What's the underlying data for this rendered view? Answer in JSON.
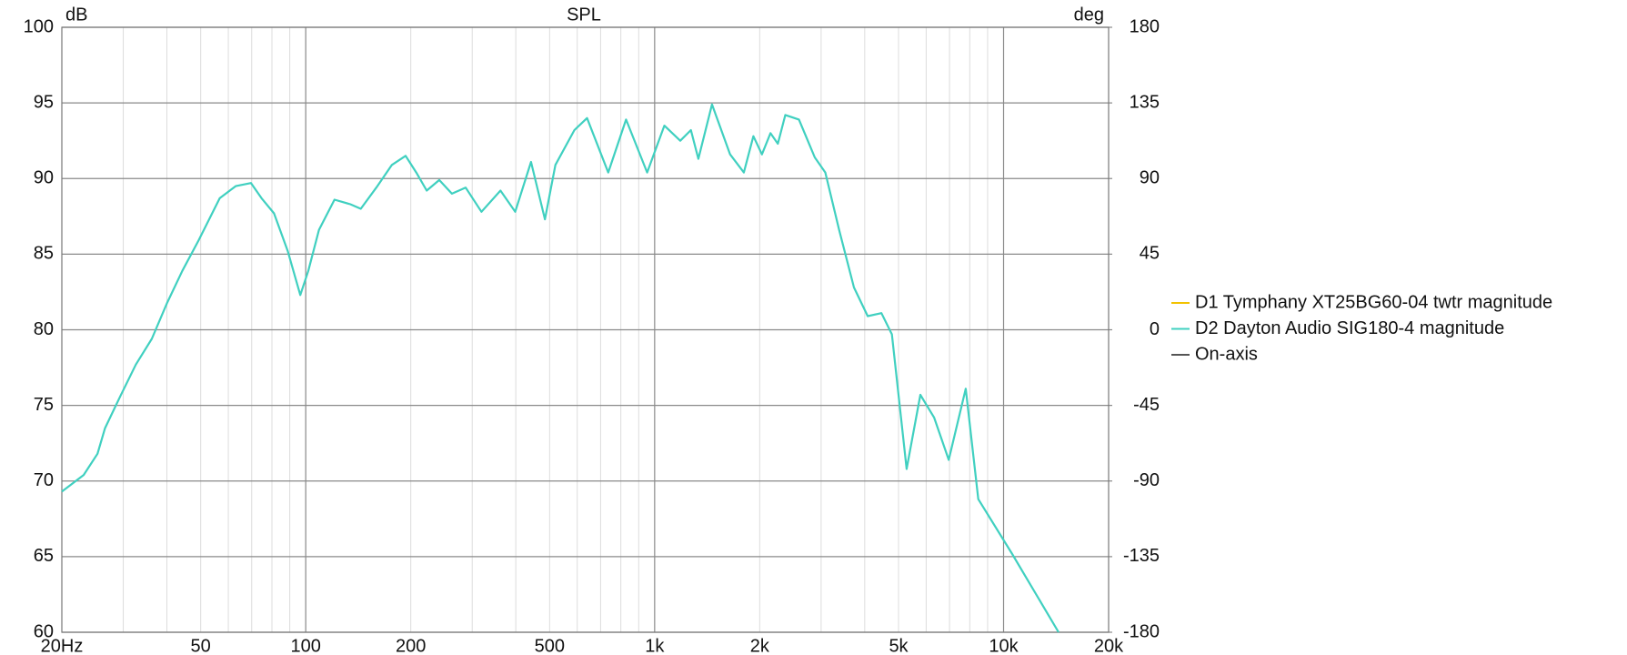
{
  "chart_data": {
    "type": "line",
    "title": "SPL",
    "y_label": "dB",
    "y2_label": "deg",
    "log_x": true,
    "grid": true,
    "x": [
      20,
      23.1,
      25.3,
      26.6,
      29.4,
      32.6,
      36.2,
      40.1,
      44.3,
      49.3,
      56.7,
      63.0,
      69.7,
      74.7,
      81.1,
      88.8,
      96.5,
      101.7,
      109.1,
      120.9,
      134.2,
      143.8,
      159.3,
      176.6,
      193.3,
      207.4,
      222.2,
      241.4,
      262.4,
      287.3,
      318.8,
      361.5,
      398.4,
      442.4,
      484.7,
      519.6,
      589,
      640,
      736,
      828,
      952,
      1066,
      1184,
      1270,
      1334,
      1460,
      1645,
      1801,
      1918,
      2030,
      2148,
      2255,
      2368,
      2592,
      2877,
      3085,
      3379,
      3726,
      4079,
      4465,
      4785,
      5275,
      5775,
      6323,
      6964,
      7790,
      8465,
      10570,
      14380
    ],
    "series": [
      {
        "name": "D1 Tymphany XT25BG60-04 twtr magnitude",
        "color": "#f2c200",
        "values": [
          null,
          null,
          null,
          null,
          null,
          null,
          null,
          null,
          null,
          null,
          null,
          null,
          null,
          null,
          null,
          null,
          null,
          null,
          null,
          null,
          null,
          null,
          null,
          null,
          null,
          null,
          null,
          null,
          null,
          null,
          null,
          null,
          null,
          null,
          null,
          null,
          null,
          null,
          null,
          null,
          null,
          null,
          null,
          null,
          null,
          null,
          null,
          null,
          null,
          null,
          null,
          null,
          null,
          null,
          null,
          null,
          null,
          null,
          null,
          null,
          null,
          null,
          null,
          null,
          null,
          null,
          null,
          null,
          null
        ]
      },
      {
        "name": "D2 Dayton Audio SIG180-4 magnitude",
        "color": "#40d0c0",
        "values": [
          69.3,
          70.4,
          71.8,
          73.5,
          75.6,
          77.7,
          79.4,
          81.8,
          83.9,
          85.9,
          88.7,
          89.5,
          89.7,
          88.7,
          87.7,
          85.2,
          82.3,
          83.9,
          86.6,
          88.6,
          88.3,
          88.0,
          89.4,
          90.9,
          91.5,
          90.4,
          89.2,
          89.9,
          89.0,
          89.4,
          87.8,
          89.2,
          87.8,
          91.1,
          87.3,
          90.9,
          93.2,
          94.0,
          90.4,
          93.9,
          90.4,
          93.5,
          92.5,
          93.2,
          91.3,
          94.9,
          91.6,
          90.4,
          92.8,
          91.6,
          93.0,
          92.3,
          94.2,
          93.9,
          91.4,
          90.4,
          86.6,
          82.8,
          80.9,
          81.1,
          79.7,
          70.8,
          75.7,
          74.2,
          71.4,
          76.1,
          68.8,
          65.2,
          60.0
        ]
      },
      {
        "name": "On-axis",
        "color": "#555555",
        "values": [
          null,
          null,
          null,
          null,
          null,
          null,
          null,
          null,
          null,
          null,
          null,
          null,
          null,
          null,
          null,
          null,
          null,
          null,
          null,
          null,
          null,
          null,
          null,
          null,
          null,
          null,
          null,
          null,
          null,
          null,
          null,
          null,
          null,
          null,
          null,
          null,
          null,
          null,
          null,
          null,
          null,
          null,
          null,
          null,
          null,
          null,
          null,
          null,
          null,
          null,
          null,
          null,
          null,
          null,
          null,
          null,
          null,
          null,
          null,
          null,
          null,
          null,
          null,
          null,
          null,
          null,
          null,
          null,
          null
        ]
      }
    ],
    "xlim": [
      20,
      20000
    ],
    "xticks": [
      {
        "value": 20,
        "label": "20Hz"
      },
      50,
      100,
      200,
      500,
      {
        "value": 1000,
        "label": "1k"
      },
      {
        "value": 2000,
        "label": "2k"
      },
      {
        "value": 5000,
        "label": "5k"
      },
      {
        "value": 10000,
        "label": "10k"
      },
      {
        "value": 20000,
        "label": "20k"
      }
    ],
    "xminor": [
      30,
      40,
      60,
      70,
      80,
      90,
      300,
      400,
      600,
      700,
      800,
      900,
      3000,
      4000,
      6000,
      7000,
      8000,
      9000
    ],
    "ylim": [
      60,
      100
    ],
    "yticks": [
      60,
      65,
      70,
      75,
      80,
      85,
      90,
      95,
      100
    ],
    "y2lim": [
      -180,
      180
    ],
    "y2ticks": [
      -180,
      -135,
      -90,
      -45,
      0,
      45,
      90,
      135,
      180
    ]
  }
}
